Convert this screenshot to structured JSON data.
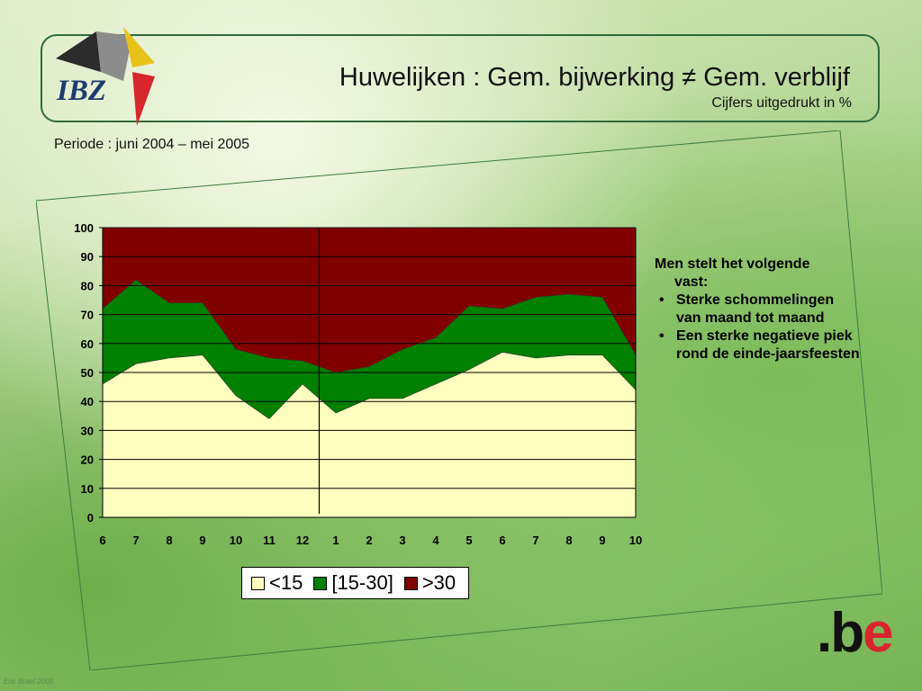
{
  "header": {
    "logo_text": "IBZ",
    "title": "Huwelijken : Gem. bijwerking ≠ Gem. verblijf",
    "subtitle": "Cijfers uitgedrukt in %"
  },
  "periode": "Periode : juni 2004 – mei 2005",
  "chart_data": {
    "type": "area",
    "stacked": true,
    "categories": [
      "6",
      "7",
      "8",
      "9",
      "10",
      "11",
      "12",
      "1",
      "2",
      "3",
      "4",
      "5",
      "6",
      "7",
      "8",
      "9",
      "10"
    ],
    "ylim": [
      0,
      100
    ],
    "yticks": [
      0,
      10,
      20,
      30,
      40,
      50,
      60,
      70,
      80,
      90,
      100
    ],
    "grid": true,
    "legend_position": "bottom",
    "divider_after_category_index": 6,
    "series": [
      {
        "name": "<15",
        "color": "#ffffc0",
        "values": [
          46,
          53,
          55,
          56,
          42,
          34,
          46,
          36,
          41,
          41,
          46,
          51,
          57,
          55,
          56,
          56,
          44
        ]
      },
      {
        "name": "[15-30]",
        "color": "#008000",
        "values": [
          26,
          29,
          19,
          18,
          16,
          21,
          8,
          14,
          11,
          17,
          16,
          22,
          15,
          21,
          21,
          20,
          12
        ]
      },
      {
        "name": ">30",
        "color": "#800000",
        "values": [
          28,
          18,
          26,
          26,
          42,
          45,
          46,
          50,
          48,
          42,
          38,
          27,
          28,
          24,
          23,
          24,
          44
        ]
      }
    ]
  },
  "legend": {
    "items": [
      {
        "label": "<15",
        "color": "#ffffc0"
      },
      {
        "label": "[15-30]",
        "color": "#008000"
      },
      {
        "label": ">30",
        "color": "#800000"
      }
    ]
  },
  "notes": {
    "intro_line1": "Men stelt  het volgende",
    "intro_line2": "vast:",
    "bullets": [
      "Sterke schommelingen van maand tot maand",
      "Een sterke negatieve piek rond de einde-jaarsfeesten"
    ]
  },
  "footer": {
    "be_logo_prefix": ".b",
    "be_logo_suffix": "e",
    "copyright": "Eric Braet 2005"
  }
}
